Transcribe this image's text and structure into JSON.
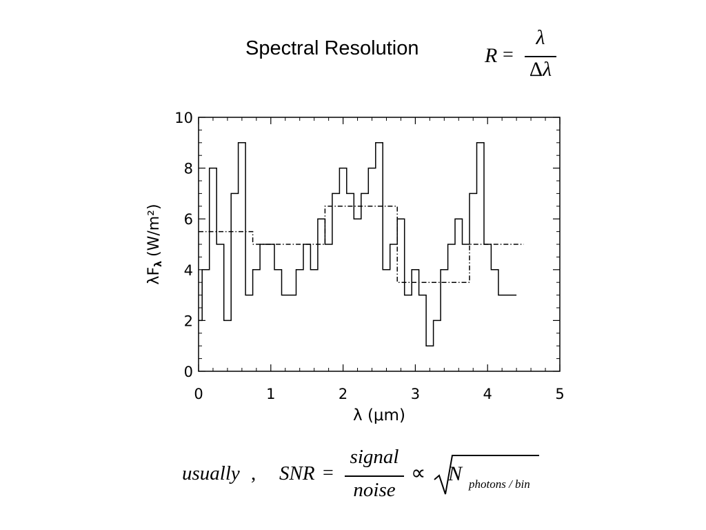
{
  "header": {
    "title": "Spectral Resolution",
    "formula": {
      "lhs": "R",
      "equals": "=",
      "numerator": "λ",
      "denominator_delta": "Δ",
      "denominator_var": "λ"
    }
  },
  "chart_data": {
    "type": "line",
    "xlabel": "λ (μm)",
    "ylabel": "λF",
    "ylabel_sub": "λ",
    "ylabel_units": "(W/m²)",
    "xlim": [
      0,
      5
    ],
    "ylim": [
      0,
      10
    ],
    "xticks": [
      "0",
      "1",
      "2",
      "3",
      "4",
      "5"
    ],
    "yticks": [
      "0",
      "2",
      "4",
      "6",
      "8",
      "10"
    ],
    "grid": false,
    "series": [
      {
        "style": "solid",
        "drawstyle": "steps-mid",
        "x": [
          0,
          0.1,
          0.2,
          0.3,
          0.4,
          0.5,
          0.6,
          0.7,
          0.8,
          0.9,
          1.0,
          1.1,
          1.2,
          1.3,
          1.4,
          1.5,
          1.6,
          1.7,
          1.8,
          1.9,
          2.0,
          2.1,
          2.2,
          2.3,
          2.4,
          2.5,
          2.6,
          2.7,
          2.8,
          2.9,
          3.0,
          3.1,
          3.2,
          3.3,
          3.4,
          3.5,
          3.6,
          3.7,
          3.8,
          3.9,
          4.0,
          4.1,
          4.2,
          4.3,
          4.4
        ],
        "y": [
          2,
          4,
          8,
          5,
          2,
          7,
          9,
          3,
          4,
          5,
          5,
          4,
          3,
          3,
          4,
          5,
          4,
          6,
          5,
          7,
          8,
          7,
          6,
          7,
          8,
          9,
          4,
          5,
          6,
          3,
          4,
          3,
          1,
          2,
          4,
          5,
          6,
          5,
          7,
          9,
          5,
          4,
          3,
          3,
          3
        ]
      },
      {
        "style": "dashdot",
        "drawstyle": "steps-post",
        "x": [
          0,
          0.75,
          1.75,
          2.75,
          3.75,
          4.5
        ],
        "y": [
          5.5,
          5.0,
          6.5,
          3.5,
          5.0,
          5.0
        ]
      }
    ]
  },
  "footer": {
    "prefix": "usually",
    "comma": ",",
    "lhs": "SNR",
    "equals": "=",
    "numerator": "signal",
    "denominator": "noise",
    "proportional": "∝",
    "radicand": "N",
    "subscript": "photons / bin"
  }
}
